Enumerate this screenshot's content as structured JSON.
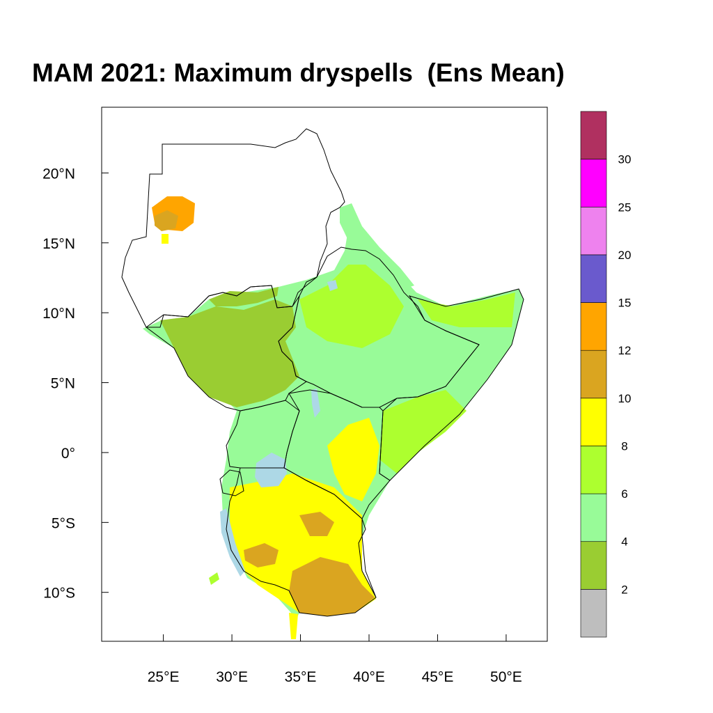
{
  "title": "MAM 2021: Maximum dryspells  (Ens Mean)",
  "map": {
    "lon_range": [
      20.5,
      53
    ],
    "lat_range": [
      -13.5,
      24.7
    ],
    "lon_ticks": [
      {
        "value": 25,
        "label": "25°E"
      },
      {
        "value": 30,
        "label": "30°E"
      },
      {
        "value": 35,
        "label": "35°E"
      },
      {
        "value": 40,
        "label": "40°E"
      },
      {
        "value": 45,
        "label": "45°E"
      },
      {
        "value": 50,
        "label": "50°E"
      }
    ],
    "lat_ticks": [
      {
        "value": 20,
        "label": "20°N"
      },
      {
        "value": 15,
        "label": "15°N"
      },
      {
        "value": 10,
        "label": "10°N"
      },
      {
        "value": 5,
        "label": "5°N"
      },
      {
        "value": 0,
        "label": "0°"
      },
      {
        "value": -5,
        "label": "5°S"
      },
      {
        "value": -10,
        "label": "10°S"
      }
    ],
    "lake_color": "#add8e6"
  },
  "colorbar": {
    "labels": [
      "2",
      "4",
      "6",
      "8",
      "10",
      "12",
      "15",
      "20",
      "25",
      "30"
    ],
    "colors": [
      "#bebebe",
      "#9acd32",
      "#98fb98",
      "#adff2f",
      "#ffff00",
      "#daa520",
      "#ffa500",
      "#6a5acd",
      "#ee82ee",
      "#ff00ff",
      "#b03060"
    ]
  }
}
